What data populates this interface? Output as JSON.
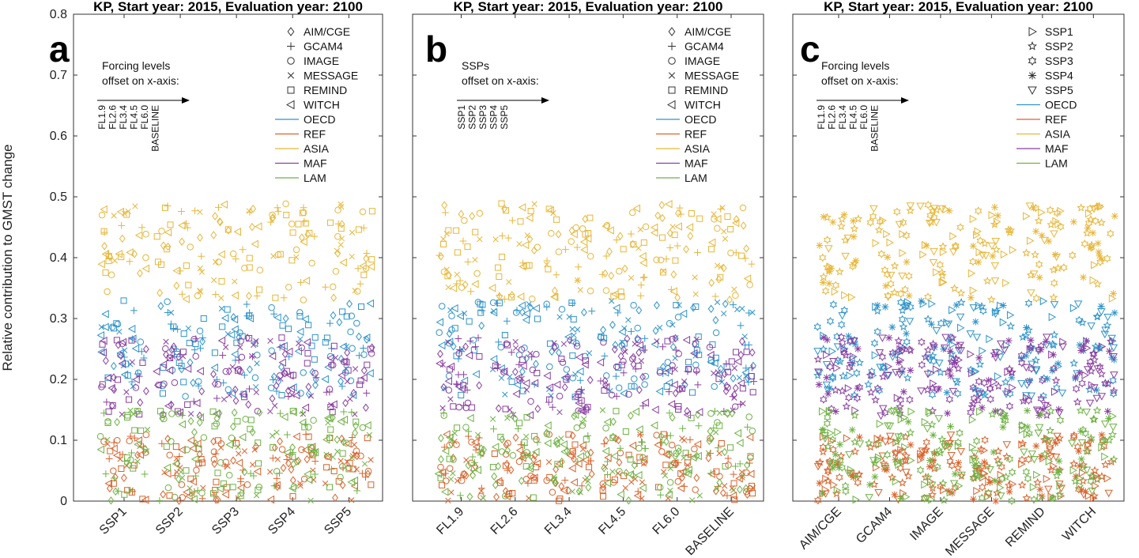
{
  "colors": {
    "OECD": "#2f94c9",
    "REF": "#d9632c",
    "ASIA": "#e8b73a",
    "MAF": "#8a3fa1",
    "LAM": "#6fb244"
  },
  "chart_data": [
    {
      "type": "scatter",
      "panel": "a",
      "title": "KP, Start year: 2015, Evaluation year: 2100",
      "ylabel": "Relative contribution to GMST change",
      "ylim": [
        0,
        0.8
      ],
      "yticks": [
        "0",
        "0.1",
        "0.2",
        "0.3",
        "0.4",
        "0.5",
        "0.6",
        "0.7",
        "0.8"
      ],
      "categories": [
        "SSP1",
        "SSP2",
        "SSP3",
        "SSP4",
        "SSP5"
      ],
      "offset_note": [
        "Forcing levels",
        "offset on x-axis:"
      ],
      "offset_labels": [
        "FL1.9",
        "FL2.6",
        "FL3.4",
        "FL4.5",
        "FL6.0",
        "BASELINE"
      ],
      "marker_legend": [
        {
          "name": "AIM/CGE",
          "marker": "diamond"
        },
        {
          "name": "GCAM4",
          "marker": "plus"
        },
        {
          "name": "IMAGE",
          "marker": "circle"
        },
        {
          "name": "MESSAGE",
          "marker": "x"
        },
        {
          "name": "REMIND",
          "marker": "square"
        },
        {
          "name": "WITCH",
          "marker": "triangle-left"
        }
      ],
      "series": [
        {
          "name": "OECD",
          "min": 0.17,
          "max": 0.33
        },
        {
          "name": "REF",
          "min": 0.0,
          "max": 0.11
        },
        {
          "name": "ASIA",
          "min": 0.33,
          "max": 0.49
        },
        {
          "name": "MAF",
          "min": 0.14,
          "max": 0.27
        },
        {
          "name": "LAM",
          "min": 0.0,
          "max": 0.15
        }
      ]
    },
    {
      "type": "scatter",
      "panel": "b",
      "title": "KP, Start year: 2015, Evaluation year: 2100",
      "ylim": [
        0,
        0.8
      ],
      "categories": [
        "FL1.9",
        "FL2.6",
        "FL3.4",
        "FL4.5",
        "FL6.0",
        "BASELINE"
      ],
      "offset_note": [
        "SSPs",
        "offset on x-axis:"
      ],
      "offset_labels": [
        "SSP1",
        "SSP2",
        "SSP3",
        "SSP4",
        "SSP5"
      ],
      "marker_legend": [
        {
          "name": "AIM/CGE",
          "marker": "diamond"
        },
        {
          "name": "GCAM4",
          "marker": "plus"
        },
        {
          "name": "IMAGE",
          "marker": "circle"
        },
        {
          "name": "MESSAGE",
          "marker": "x"
        },
        {
          "name": "REMIND",
          "marker": "square"
        },
        {
          "name": "WITCH",
          "marker": "triangle-left"
        }
      ],
      "series": [
        {
          "name": "OECD",
          "min": 0.17,
          "max": 0.33
        },
        {
          "name": "REF",
          "min": 0.0,
          "max": 0.11
        },
        {
          "name": "ASIA",
          "min": 0.33,
          "max": 0.49
        },
        {
          "name": "MAF",
          "min": 0.14,
          "max": 0.27
        },
        {
          "name": "LAM",
          "min": 0.0,
          "max": 0.15
        }
      ]
    },
    {
      "type": "scatter",
      "panel": "c",
      "title": "KP, Start year: 2015, Evaluation year: 2100",
      "ylim": [
        0,
        0.8
      ],
      "categories": [
        "AIM/CGE",
        "GCAM4",
        "IMAGE",
        "MESSAGE",
        "REMIND",
        "WITCH"
      ],
      "offset_note": [
        "Forcing levels",
        "offset on x-axis:"
      ],
      "offset_labels": [
        "FL1.9",
        "FL2.6",
        "FL3.4",
        "FL4.5",
        "FL6.0",
        "BASELINE"
      ],
      "marker_legend": [
        {
          "name": "SSP1",
          "marker": "triangle-right"
        },
        {
          "name": "SSP2",
          "marker": "star"
        },
        {
          "name": "SSP3",
          "marker": "hexagram"
        },
        {
          "name": "SSP4",
          "marker": "asterisk"
        },
        {
          "name": "SSP5",
          "marker": "triangle-down"
        }
      ],
      "series": [
        {
          "name": "OECD",
          "min": 0.17,
          "max": 0.33
        },
        {
          "name": "REF",
          "min": 0.0,
          "max": 0.11
        },
        {
          "name": "ASIA",
          "min": 0.33,
          "max": 0.49
        },
        {
          "name": "MAF",
          "min": 0.14,
          "max": 0.27
        },
        {
          "name": "LAM",
          "min": 0.0,
          "max": 0.15
        }
      ]
    }
  ],
  "panel_letters": [
    "a",
    "b",
    "c"
  ],
  "region_legend": [
    "OECD",
    "REF",
    "ASIA",
    "MAF",
    "LAM"
  ]
}
